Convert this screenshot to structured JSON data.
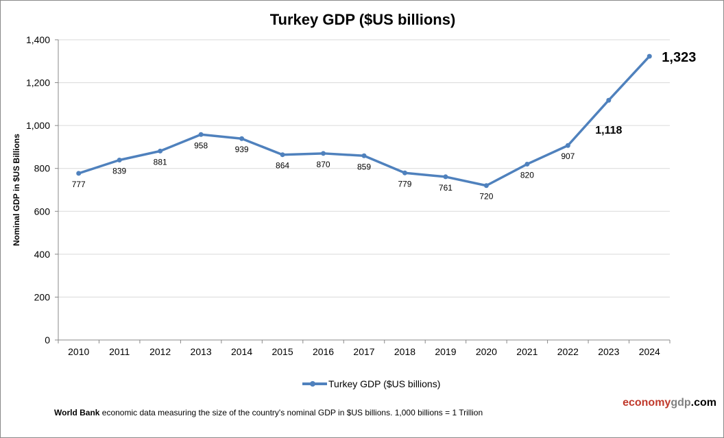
{
  "chart_data": {
    "type": "line",
    "title": "Turkey GDP ($US billions)",
    "ylabel": "Nominal GDP in $US  Billions",
    "xlabel": "",
    "ylim": [
      0,
      1400
    ],
    "yticks": [
      0,
      200,
      400,
      600,
      800,
      1000,
      1200,
      1400
    ],
    "ytick_labels": [
      "0",
      "200",
      "400",
      "600",
      "800",
      "1,000",
      "1,200",
      "1,400"
    ],
    "grid": true,
    "legend": "bottom",
    "categories": [
      "2010",
      "2011",
      "2012",
      "2013",
      "2014",
      "2015",
      "2016",
      "2017",
      "2018",
      "2019",
      "2020",
      "2021",
      "2022",
      "2023",
      "2024"
    ],
    "series": [
      {
        "name": "Turkey GDP ($US billions)",
        "values": [
          777,
          839,
          881,
          958,
          939,
          864,
          870,
          859,
          779,
          761,
          720,
          820,
          907,
          1118,
          1323
        ],
        "labels": [
          "777",
          "839",
          "881",
          "958",
          "939",
          "864",
          "870",
          "859",
          "779",
          "761",
          "720",
          "820",
          "907",
          "1,118",
          "1,323"
        ],
        "color": "#4f81bd"
      }
    ]
  },
  "footer": {
    "source_bold": "World Bank",
    "text": " economic data  measuring the size of the country's nominal  GDP in $US billions. 1,000 billions = 1 Trillion"
  },
  "brand": {
    "part1": "economy",
    "part2": "gdp",
    "part3": ".com",
    "color1": "#c0392b",
    "color2": "#808080",
    "color3": "#000000"
  }
}
